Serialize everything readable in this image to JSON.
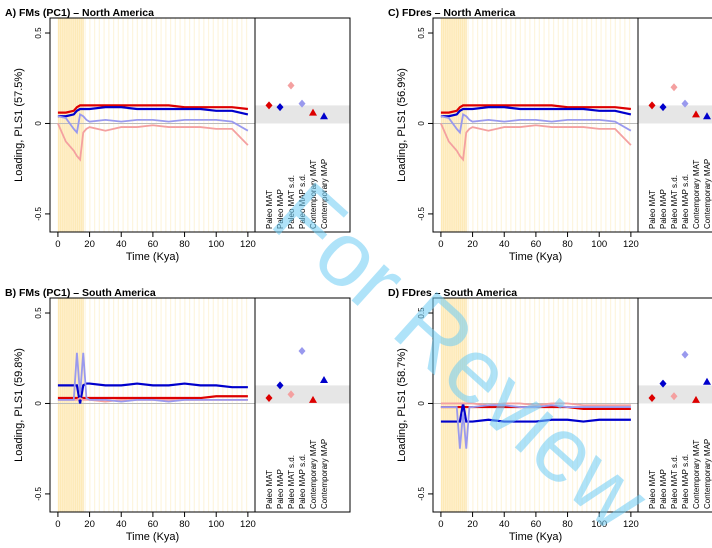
{
  "watermark": "For Review",
  "chart_data": [
    {
      "type": "line",
      "title": "A) FMs (PC1) – North America",
      "y_label": "Loading, PLS1 (57.5%)",
      "x_label": "Time (Kya)",
      "x": [
        0,
        5,
        10,
        12,
        14,
        16,
        18,
        20,
        30,
        40,
        50,
        60,
        70,
        80,
        90,
        100,
        110,
        120
      ],
      "xlim": [
        -5,
        124.5
      ],
      "ylim": [
        -0.6,
        0.583
      ],
      "xticks": [
        0,
        20,
        40,
        60,
        80,
        100,
        120
      ],
      "yticks": [
        -0.5,
        0,
        0.5
      ],
      "series": [
        {
          "color": "#dd0000",
          "values": [
            0.06,
            0.06,
            0.07,
            0.09,
            0.1,
            0.1,
            0.1,
            0.1,
            0.1,
            0.1,
            0.1,
            0.1,
            0.1,
            0.09,
            0.09,
            0.09,
            0.09,
            0.08
          ]
        },
        {
          "color": "#0000cc",
          "values": [
            0.04,
            0.04,
            0.05,
            0.07,
            0.08,
            0.08,
            0.08,
            0.08,
            0.09,
            0.09,
            0.08,
            0.08,
            0.08,
            0.08,
            0.08,
            0.07,
            0.07,
            0.05
          ]
        },
        {
          "color": "#f4a0a0",
          "values": [
            0,
            -0.1,
            -0.15,
            -0.18,
            -0.2,
            -0.05,
            -0.03,
            -0.02,
            -0.04,
            -0.02,
            -0.02,
            -0.01,
            -0.02,
            -0.02,
            -0.02,
            -0.03,
            -0.03,
            -0.12
          ]
        },
        {
          "color": "#9999ee",
          "values": [
            0.04,
            0.03,
            -0.03,
            -0.05,
            0.05,
            0.04,
            0.02,
            0.01,
            0.02,
            0.01,
            0.02,
            0.02,
            0.01,
            0.02,
            0.02,
            0.02,
            0.01,
            -0.04
          ]
        }
      ],
      "summary": {
        "categories": [
          "Paleo MAT",
          "Paleo MAP",
          "Paleo MAT s.d.",
          "Paleo MAP s.d.",
          "Contemporary MAT",
          "Contemporary MAP"
        ],
        "values": [
          0.1,
          0.09,
          0.21,
          0.11,
          0.06,
          0.04
        ],
        "colors": [
          "#dd0000",
          "#0000cc",
          "#f4a0a0",
          "#9999ee",
          "#dd0000",
          "#0000cc"
        ],
        "markers": [
          "diamond",
          "diamond",
          "diamond",
          "diamond",
          "triangle",
          "triangle"
        ]
      }
    },
    {
      "type": "line",
      "title": "C) FDres – North America",
      "y_label": "Loading, PLS1 (56.9%)",
      "x_label": "Time (Kya)",
      "x": [
        0,
        5,
        10,
        12,
        14,
        16,
        18,
        20,
        30,
        40,
        50,
        60,
        70,
        80,
        90,
        100,
        110,
        120
      ],
      "xlim": [
        -5,
        124.5
      ],
      "ylim": [
        -0.6,
        0.583
      ],
      "xticks": [
        0,
        20,
        40,
        60,
        80,
        100,
        120
      ],
      "yticks": [
        -0.5,
        0,
        0.5
      ],
      "series": [
        {
          "color": "#dd0000",
          "values": [
            0.06,
            0.06,
            0.07,
            0.09,
            0.1,
            0.1,
            0.1,
            0.1,
            0.1,
            0.1,
            0.1,
            0.1,
            0.1,
            0.09,
            0.09,
            0.09,
            0.09,
            0.08
          ]
        },
        {
          "color": "#0000cc",
          "values": [
            0.04,
            0.04,
            0.05,
            0.07,
            0.08,
            0.08,
            0.08,
            0.08,
            0.09,
            0.09,
            0.08,
            0.08,
            0.08,
            0.08,
            0.08,
            0.07,
            0.07,
            0.05
          ]
        },
        {
          "color": "#f4a0a0",
          "values": [
            0,
            -0.1,
            -0.15,
            -0.18,
            -0.2,
            -0.05,
            -0.03,
            -0.02,
            -0.04,
            -0.02,
            -0.02,
            -0.01,
            -0.02,
            -0.02,
            -0.02,
            -0.03,
            -0.03,
            -0.12
          ]
        },
        {
          "color": "#9999ee",
          "values": [
            0.04,
            0.03,
            -0.03,
            -0.05,
            0.05,
            0.04,
            0.02,
            0.01,
            0.02,
            0.01,
            0.02,
            0.02,
            0.01,
            0.02,
            0.02,
            0.02,
            0.01,
            -0.04
          ]
        }
      ],
      "summary": {
        "categories": [
          "Paleo MAT",
          "Paleo MAP",
          "Paleo MAT s.d.",
          "Paleo MAP s.d.",
          "Contemporary MAT",
          "Contemporary MAP"
        ],
        "values": [
          0.1,
          0.09,
          0.2,
          0.11,
          0.05,
          0.04
        ],
        "colors": [
          "#dd0000",
          "#0000cc",
          "#f4a0a0",
          "#9999ee",
          "#dd0000",
          "#0000cc"
        ],
        "markers": [
          "diamond",
          "diamond",
          "diamond",
          "diamond",
          "triangle",
          "triangle"
        ]
      }
    },
    {
      "type": "line",
      "title": "B) FMs (PC1) – South America",
      "y_label": "Loading, PLS1 (59.8%)",
      "x_label": "Time (Kya)",
      "x": [
        0,
        5,
        10,
        12,
        14,
        16,
        18,
        20,
        30,
        40,
        50,
        60,
        70,
        80,
        90,
        100,
        110,
        120
      ],
      "xlim": [
        -5,
        124.5
      ],
      "ylim": [
        -0.6,
        0.583
      ],
      "xticks": [
        0,
        20,
        40,
        60,
        80,
        100,
        120
      ],
      "yticks": [
        -0.5,
        0,
        0.5
      ],
      "series": [
        {
          "color": "#dd0000",
          "values": [
            0.03,
            0.03,
            0.03,
            0.03,
            0.03,
            0.03,
            0.03,
            0.03,
            0.03,
            0.03,
            0.03,
            0.03,
            0.03,
            0.03,
            0.03,
            0.04,
            0.04,
            0.04
          ]
        },
        {
          "color": "#0000cc",
          "values": [
            0.1,
            0.1,
            0.1,
            0.1,
            0,
            0.1,
            0.11,
            0.11,
            0.1,
            0.1,
            0.11,
            0.1,
            0.1,
            0.11,
            0.1,
            0.1,
            0.09,
            0.09
          ]
        },
        {
          "color": "#f4a0a0",
          "values": [
            0.02,
            0.02,
            0.02,
            0.02,
            0.03,
            0.02,
            0.02,
            0.02,
            0.01,
            0.02,
            0.02,
            0.02,
            0.02,
            0.02,
            0.02,
            0.02,
            0.02,
            0.02
          ]
        },
        {
          "color": "#9999ee",
          "values": [
            0.02,
            0.02,
            0.02,
            0.28,
            0.05,
            0.28,
            0.03,
            0.02,
            0.02,
            0.01,
            0.02,
            0.02,
            0.01,
            0.02,
            0.02,
            0.02,
            0.02,
            0.02
          ]
        }
      ],
      "summary": {
        "categories": [
          "Paleo MAT",
          "Paleo MAP",
          "Paleo MAT s.d.",
          "Paleo MAP s.d.",
          "Contemporary MAT",
          "Contemporary MAP"
        ],
        "values": [
          0.03,
          0.1,
          0.05,
          0.29,
          0.02,
          0.13
        ],
        "colors": [
          "#dd0000",
          "#0000cc",
          "#f4a0a0",
          "#9999ee",
          "#dd0000",
          "#0000cc"
        ],
        "markers": [
          "diamond",
          "diamond",
          "diamond",
          "diamond",
          "triangle",
          "triangle"
        ]
      }
    },
    {
      "type": "line",
      "title": "D) FDres – South America",
      "y_label": "Loading, PLS1 (58.7%)",
      "x_label": "Time (Kya)",
      "x": [
        0,
        5,
        10,
        12,
        14,
        16,
        18,
        20,
        30,
        40,
        50,
        60,
        70,
        80,
        90,
        100,
        110,
        120
      ],
      "xlim": [
        -5,
        124.5
      ],
      "ylim": [
        -0.6,
        0.583
      ],
      "xticks": [
        0,
        20,
        40,
        60,
        80,
        100,
        120
      ],
      "yticks": [
        -0.5,
        0,
        0.5
      ],
      "series": [
        {
          "color": "#dd0000",
          "values": [
            -0.02,
            -0.02,
            -0.02,
            -0.02,
            -0.02,
            -0.02,
            -0.02,
            -0.02,
            -0.02,
            -0.02,
            -0.02,
            -0.02,
            -0.02,
            -0.02,
            -0.03,
            -0.03,
            -0.03,
            -0.03
          ]
        },
        {
          "color": "#0000cc",
          "values": [
            -0.1,
            -0.1,
            -0.1,
            -0.1,
            0,
            -0.1,
            -0.1,
            -0.1,
            -0.09,
            -0.1,
            -0.1,
            -0.1,
            -0.09,
            -0.09,
            -0.1,
            -0.09,
            -0.09,
            -0.09
          ]
        },
        {
          "color": "#f4a0a0",
          "values": [
            0,
            0,
            0,
            0,
            0,
            0,
            0,
            0,
            -0.01,
            0,
            0,
            -0.01,
            0,
            0,
            -0.01,
            -0.01,
            -0.01,
            -0.01
          ]
        },
        {
          "color": "#9999ee",
          "values": [
            -0.02,
            -0.02,
            -0.02,
            -0.25,
            -0.05,
            -0.25,
            -0.02,
            -0.02,
            -0.01,
            -0.01,
            -0.02,
            -0.02,
            -0.01,
            -0.02,
            -0.02,
            -0.02,
            -0.02,
            -0.02
          ]
        }
      ],
      "summary": {
        "categories": [
          "Paleo MAT",
          "Paleo MAP",
          "Paleo MAT s.d.",
          "Paleo MAP s.d.",
          "Contemporary MAT",
          "Contemporary MAP"
        ],
        "values": [
          0.03,
          0.11,
          0.04,
          0.27,
          0.02,
          0.12
        ],
        "colors": [
          "#dd0000",
          "#0000cc",
          "#f4a0a0",
          "#9999ee",
          "#dd0000",
          "#0000cc"
        ],
        "markers": [
          "diamond",
          "diamond",
          "diamond",
          "diamond",
          "triangle",
          "triangle"
        ]
      }
    }
  ]
}
